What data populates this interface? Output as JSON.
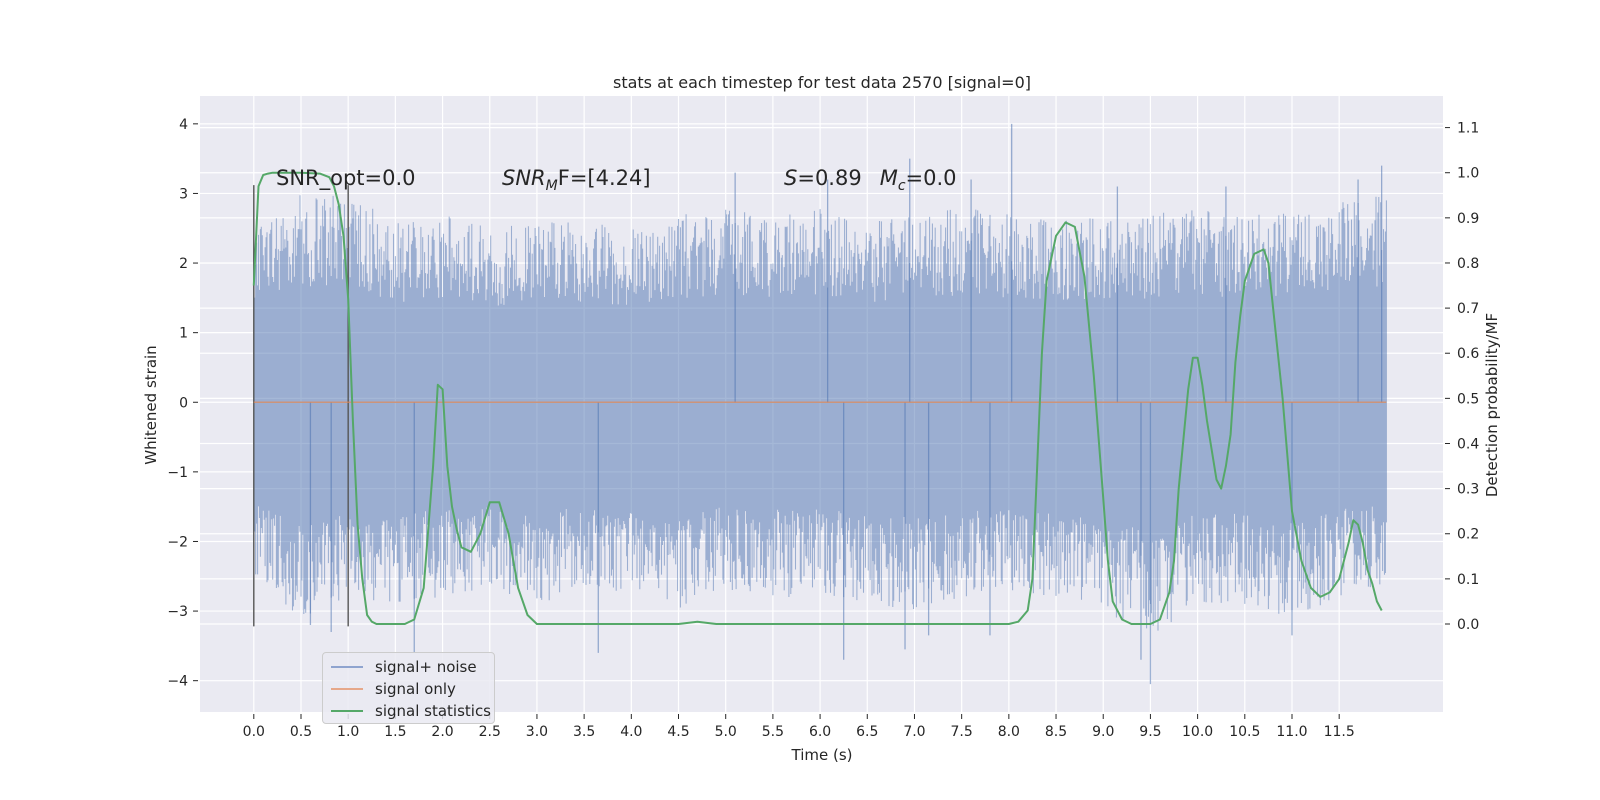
{
  "chart_data": {
    "type": "line",
    "title": "stats at each timestep for test data 2570 [signal=0]",
    "xlabel": "Time (s)",
    "ylabel": "Whitened strain",
    "y2label": "Detection probability/MF",
    "xlim": [
      -0.57,
      12.6
    ],
    "ylim": [
      -4.45,
      4.4
    ],
    "y2lim": [
      -0.195,
      1.17
    ],
    "xticks": [
      "0.0",
      "0.5",
      "1.0",
      "1.5",
      "2.0",
      "2.5",
      "3.0",
      "3.5",
      "4.0",
      "4.5",
      "5.0",
      "5.5",
      "6.0",
      "6.5",
      "7.0",
      "7.5",
      "8.0",
      "8.5",
      "9.0",
      "9.5",
      "10.0",
      "10.5",
      "11.0",
      "11.5"
    ],
    "yticks": [
      4,
      3,
      2,
      1,
      0,
      -1,
      -2,
      -3,
      -4
    ],
    "y2ticks": [
      "0.0",
      "0.1",
      "0.2",
      "0.3",
      "0.4",
      "0.5",
      "0.6",
      "0.7",
      "0.8",
      "0.9",
      "1.0",
      "1.1"
    ],
    "grid": true,
    "legend_position": "lower-left",
    "annotations": {
      "snr_opt": "SNR_opt=0.0",
      "snr_mf_prefix": "SNR",
      "snr_mf_sub": "M",
      "snr_mf_suffix": "F=[4.24]",
      "s_label": "S",
      "s_value": "=0.89",
      "mc_label": "M",
      "mc_sub": "c",
      "mc_value": "=0.0"
    },
    "vlines": [
      0.0,
      1.0
    ],
    "series": [
      {
        "name": "signal+ noise",
        "color": "#4c72b0",
        "x_range": [
          0,
          12
        ],
        "envelope_x": [
          0.0,
          0.5,
          1.0,
          1.5,
          2.0,
          2.5,
          3.0,
          3.5,
          4.0,
          4.5,
          5.0,
          5.5,
          6.0,
          6.5,
          7.0,
          7.5,
          8.0,
          8.5,
          9.0,
          9.5,
          10.0,
          10.5,
          11.0,
          11.5,
          12.0
        ],
        "envelope_upper": [
          2.6,
          3.0,
          3.0,
          2.6,
          2.7,
          2.5,
          2.6,
          2.6,
          2.5,
          2.7,
          2.8,
          2.7,
          2.8,
          2.6,
          2.7,
          2.8,
          2.7,
          2.6,
          2.7,
          2.7,
          2.8,
          2.7,
          2.8,
          2.9,
          3.0
        ],
        "envelope_lower": [
          -2.6,
          -3.1,
          -2.8,
          -2.9,
          -2.8,
          -2.7,
          -2.9,
          -2.7,
          -2.8,
          -3.0,
          -2.7,
          -2.8,
          -2.8,
          -2.9,
          -3.0,
          -2.8,
          -2.7,
          -2.8,
          -3.0,
          -3.4,
          -2.9,
          -2.9,
          -3.1,
          -2.8,
          -2.6
        ],
        "spikes": [
          [
            0.6,
            -3.2
          ],
          [
            0.82,
            -3.3
          ],
          [
            1.7,
            -3.6
          ],
          [
            3.65,
            -3.6
          ],
          [
            6.25,
            -3.7
          ],
          [
            6.9,
            -3.55
          ],
          [
            7.15,
            -3.35
          ],
          [
            7.8,
            -3.35
          ],
          [
            9.5,
            -4.05
          ],
          [
            9.4,
            -3.7
          ],
          [
            11.0,
            -3.35
          ],
          [
            8.03,
            4.0
          ],
          [
            5.1,
            3.3
          ],
          [
            6.08,
            3.2
          ],
          [
            6.95,
            3.5
          ],
          [
            7.6,
            3.2
          ],
          [
            9.15,
            3.1
          ],
          [
            11.95,
            3.4
          ],
          [
            11.7,
            3.2
          ],
          [
            10.3,
            3.1
          ]
        ]
      },
      {
        "name": "signal only",
        "color": "#dd8452",
        "x": [
          0,
          12
        ],
        "y": [
          0,
          0
        ]
      },
      {
        "name": "signal statistics",
        "color": "#55a868",
        "axis": "right",
        "x": [
          0.0,
          0.05,
          0.1,
          0.15,
          0.2,
          0.3,
          0.5,
          0.7,
          0.8,
          0.85,
          0.9,
          0.95,
          1.0,
          1.05,
          1.1,
          1.15,
          1.2,
          1.25,
          1.3,
          1.4,
          1.5,
          1.6,
          1.7,
          1.8,
          1.9,
          1.95,
          2.0,
          2.05,
          2.1,
          2.15,
          2.2,
          2.3,
          2.4,
          2.5,
          2.6,
          2.7,
          2.75,
          2.8,
          2.9,
          3.0,
          3.1,
          3.2,
          3.3,
          3.5,
          4.0,
          4.2,
          4.5,
          4.7,
          4.9,
          5.0,
          5.5,
          6.0,
          6.5,
          7.0,
          7.5,
          8.0,
          8.1,
          8.2,
          8.25,
          8.3,
          8.35,
          8.4,
          8.5,
          8.6,
          8.7,
          8.8,
          8.9,
          9.0,
          9.05,
          9.1,
          9.2,
          9.3,
          9.4,
          9.5,
          9.6,
          9.7,
          9.75,
          9.8,
          9.9,
          9.95,
          10.0,
          10.05,
          10.1,
          10.2,
          10.25,
          10.3,
          10.35,
          10.4,
          10.45,
          10.5,
          10.6,
          10.7,
          10.75,
          10.8,
          10.9,
          11.0,
          11.1,
          11.2,
          11.3,
          11.4,
          11.5,
          11.6,
          11.65,
          11.7,
          11.75,
          11.8,
          11.85,
          11.9,
          11.95
        ],
        "y": [
          0.75,
          0.97,
          0.995,
          0.998,
          1.0,
          1.0,
          1.0,
          0.998,
          0.99,
          0.97,
          0.93,
          0.86,
          0.72,
          0.45,
          0.22,
          0.1,
          0.02,
          0.005,
          0.0,
          0.0,
          0.0,
          0.0,
          0.01,
          0.08,
          0.35,
          0.53,
          0.52,
          0.35,
          0.26,
          0.21,
          0.17,
          0.16,
          0.2,
          0.27,
          0.27,
          0.2,
          0.14,
          0.08,
          0.02,
          0.0,
          0.0,
          0.0,
          0.0,
          0.0,
          0.0,
          0.0,
          0.0,
          0.005,
          0.0,
          0.0,
          0.0,
          0.0,
          0.0,
          0.0,
          0.0,
          0.0,
          0.005,
          0.03,
          0.1,
          0.35,
          0.6,
          0.76,
          0.86,
          0.89,
          0.88,
          0.77,
          0.55,
          0.28,
          0.14,
          0.05,
          0.01,
          0.0,
          0.0,
          0.0,
          0.01,
          0.07,
          0.14,
          0.3,
          0.52,
          0.59,
          0.59,
          0.53,
          0.45,
          0.32,
          0.3,
          0.35,
          0.42,
          0.58,
          0.68,
          0.76,
          0.82,
          0.83,
          0.8,
          0.7,
          0.5,
          0.25,
          0.14,
          0.08,
          0.06,
          0.07,
          0.1,
          0.18,
          0.23,
          0.22,
          0.18,
          0.12,
          0.09,
          0.05,
          0.03
        ]
      }
    ]
  }
}
